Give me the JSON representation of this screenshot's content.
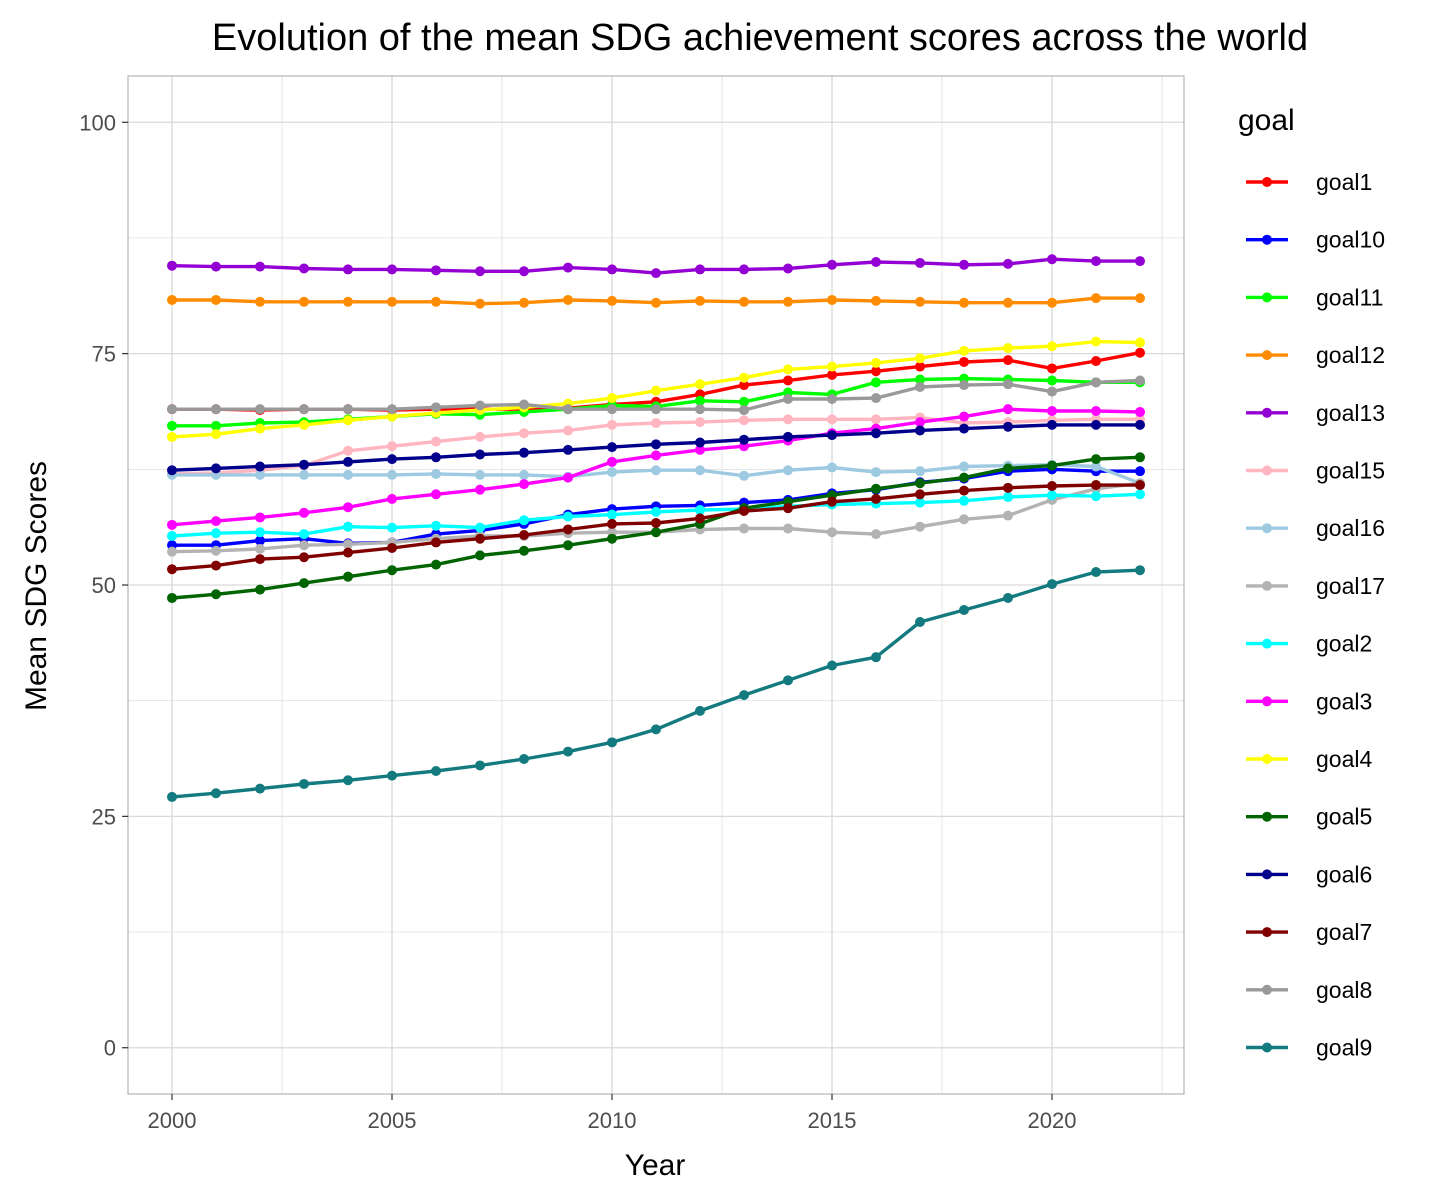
{
  "chart_data": {
    "type": "line",
    "title": "Evolution of the mean SDG achievement scores across the world",
    "xlabel": "Year",
    "ylabel": "Mean SDG Scores",
    "xlim": [
      1999,
      2023
    ],
    "ylim": [
      -5,
      105
    ],
    "xticks": [
      2000,
      2005,
      2010,
      2015,
      2020
    ],
    "yticks": [
      0,
      25,
      50,
      75,
      100
    ],
    "grid": true,
    "legend": {
      "title": "goal",
      "position": "right"
    },
    "x": [
      2000,
      2001,
      2002,
      2003,
      2004,
      2005,
      2006,
      2007,
      2008,
      2009,
      2010,
      2011,
      2012,
      2013,
      2014,
      2015,
      2016,
      2017,
      2018,
      2019,
      2020,
      2021,
      2022
    ],
    "series": [
      {
        "name": "goal1",
        "color": "#ff0000",
        "values": [
          69.0,
          69.0,
          68.9,
          69.0,
          69.0,
          68.9,
          69.0,
          69.0,
          69.0,
          69.1,
          69.5,
          69.8,
          70.6,
          71.6,
          72.1,
          72.7,
          73.1,
          73.6,
          74.1,
          74.3,
          73.4,
          74.2,
          75.1
        ]
      },
      {
        "name": "goal10",
        "color": "#0000ff",
        "values": [
          54.3,
          54.3,
          54.8,
          55.0,
          54.5,
          54.6,
          55.5,
          55.9,
          56.6,
          57.6,
          58.2,
          58.5,
          58.6,
          58.9,
          59.2,
          59.9,
          60.3,
          61.1,
          61.5,
          62.3,
          62.5,
          62.3,
          62.3
        ]
      },
      {
        "name": "goal11",
        "color": "#00ff00",
        "values": [
          67.2,
          67.2,
          67.5,
          67.6,
          67.9,
          68.2,
          68.5,
          68.4,
          68.7,
          69.0,
          69.4,
          69.3,
          69.9,
          69.8,
          70.8,
          70.6,
          71.9,
          72.2,
          72.3,
          72.2,
          72.1,
          71.9,
          71.9
        ]
      },
      {
        "name": "goal12",
        "color": "#ff8c00",
        "values": [
          80.8,
          80.8,
          80.6,
          80.6,
          80.6,
          80.6,
          80.6,
          80.4,
          80.5,
          80.8,
          80.7,
          80.5,
          80.7,
          80.6,
          80.6,
          80.8,
          80.7,
          80.6,
          80.5,
          80.5,
          80.5,
          81.0,
          81.0
        ]
      },
      {
        "name": "goal13",
        "color": "#9400d3",
        "values": [
          84.5,
          84.4,
          84.4,
          84.2,
          84.1,
          84.1,
          84.0,
          83.9,
          83.9,
          84.3,
          84.1,
          83.7,
          84.1,
          84.1,
          84.2,
          84.6,
          84.9,
          84.8,
          84.6,
          84.7,
          85.2,
          85.0,
          85.0
        ]
      },
      {
        "name": "goal15",
        "color": "#ffb6c1",
        "values": [
          62.0,
          62.1,
          62.4,
          62.9,
          64.5,
          65.0,
          65.5,
          66.0,
          66.4,
          66.7,
          67.3,
          67.5,
          67.6,
          67.8,
          67.9,
          67.9,
          67.9,
          68.1,
          67.5,
          67.6,
          67.8,
          67.9,
          67.9
        ]
      },
      {
        "name": "goal16",
        "color": "#9ecae1",
        "values": [
          61.9,
          61.9,
          61.9,
          61.9,
          61.9,
          61.9,
          62.0,
          61.9,
          61.9,
          61.7,
          62.2,
          62.4,
          62.4,
          61.8,
          62.4,
          62.7,
          62.2,
          62.3,
          62.8,
          62.9,
          63.0,
          62.8,
          61.0
        ]
      },
      {
        "name": "goal17",
        "color": "#b3b3b3",
        "values": [
          53.6,
          53.7,
          53.9,
          54.3,
          54.4,
          54.6,
          55.0,
          55.3,
          55.3,
          55.6,
          55.7,
          55.7,
          56.0,
          56.1,
          56.1,
          55.7,
          55.5,
          56.3,
          57.1,
          57.5,
          59.2,
          60.4,
          61.0
        ]
      },
      {
        "name": "goal2",
        "color": "#00ffff",
        "values": [
          55.3,
          55.6,
          55.7,
          55.5,
          56.3,
          56.2,
          56.4,
          56.2,
          57.0,
          57.4,
          57.6,
          57.9,
          58.1,
          58.2,
          58.5,
          58.7,
          58.8,
          58.9,
          59.1,
          59.5,
          59.7,
          59.6,
          59.8
        ]
      },
      {
        "name": "goal3",
        "color": "#ff00ff",
        "values": [
          56.5,
          56.9,
          57.3,
          57.8,
          58.4,
          59.3,
          59.8,
          60.3,
          60.9,
          61.6,
          63.3,
          64.0,
          64.6,
          65.0,
          65.6,
          66.4,
          66.9,
          67.6,
          68.2,
          69.0,
          68.8,
          68.8,
          68.7
        ]
      },
      {
        "name": "goal4",
        "color": "#ffff00",
        "values": [
          66.0,
          66.3,
          66.9,
          67.3,
          67.8,
          68.2,
          68.6,
          68.9,
          69.2,
          69.6,
          70.2,
          71.0,
          71.7,
          72.4,
          73.3,
          73.6,
          74.0,
          74.5,
          75.3,
          75.6,
          75.8,
          76.3,
          76.2
        ]
      },
      {
        "name": "goal5",
        "color": "#006400",
        "values": [
          48.6,
          49.0,
          49.5,
          50.2,
          50.9,
          51.6,
          52.2,
          53.2,
          53.7,
          54.3,
          55.0,
          55.7,
          56.6,
          58.3,
          59.0,
          59.7,
          60.4,
          61.0,
          61.6,
          62.6,
          62.9,
          63.6,
          63.8
        ]
      },
      {
        "name": "goal6",
        "color": "#00008b",
        "values": [
          62.4,
          62.6,
          62.8,
          63.0,
          63.3,
          63.6,
          63.8,
          64.1,
          64.3,
          64.6,
          64.9,
          65.2,
          65.4,
          65.7,
          66.0,
          66.2,
          66.4,
          66.7,
          66.9,
          67.1,
          67.3,
          67.3,
          67.3
        ]
      },
      {
        "name": "goal7",
        "color": "#800000",
        "values": [
          51.7,
          52.1,
          52.8,
          53.0,
          53.5,
          54.0,
          54.6,
          55.0,
          55.4,
          56.0,
          56.6,
          56.7,
          57.2,
          58.0,
          58.3,
          59.0,
          59.3,
          59.8,
          60.2,
          60.5,
          60.7,
          60.8,
          60.8
        ]
      },
      {
        "name": "goal8",
        "color": "#999999",
        "values": [
          69.0,
          69.0,
          69.0,
          69.0,
          69.0,
          69.0,
          69.2,
          69.4,
          69.5,
          69.0,
          69.0,
          69.0,
          69.0,
          68.9,
          70.1,
          70.1,
          70.2,
          71.4,
          71.6,
          71.7,
          70.9,
          71.9,
          72.1
        ]
      },
      {
        "name": "goal9",
        "color": "#137a7f",
        "values": [
          27.1,
          27.5,
          28.0,
          28.5,
          28.9,
          29.4,
          29.9,
          30.5,
          31.2,
          32.0,
          33.0,
          34.4,
          36.4,
          38.1,
          39.7,
          41.3,
          42.2,
          46.0,
          47.3,
          48.6,
          50.1,
          51.4,
          51.6
        ]
      }
    ]
  }
}
